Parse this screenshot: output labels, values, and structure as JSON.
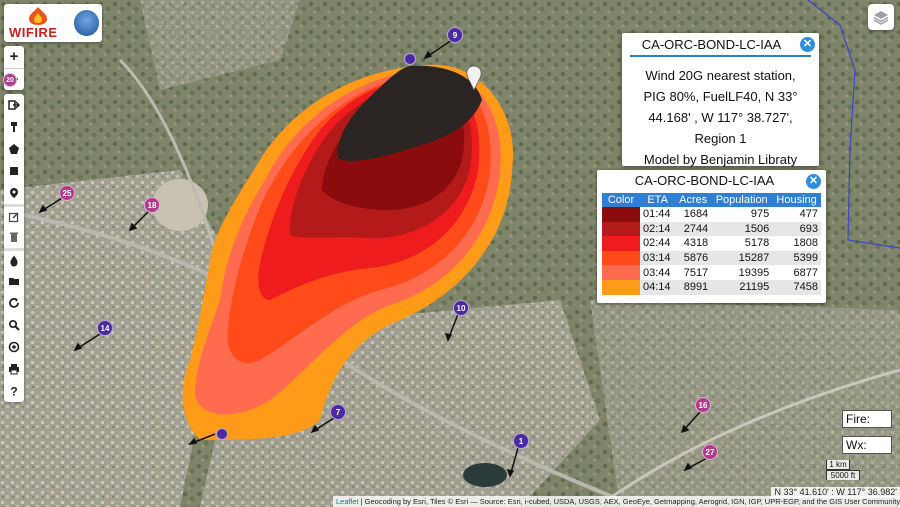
{
  "logo": {
    "wifire_text": "WIFIRE",
    "nsf_text": "NSF"
  },
  "map_controls": {
    "zoom_in": "+",
    "zoom_out": "−",
    "badge": "20",
    "tools": [
      "export-icon",
      "paint-icon",
      "polygon-icon",
      "square-icon",
      "pin-icon",
      "edit-icon",
      "trash-icon",
      "fire-icon",
      "folder-icon",
      "refresh-icon",
      "search-icon",
      "target-icon",
      "print-icon",
      "help-icon"
    ]
  },
  "fire_info_popup": {
    "title": "CA-ORC-BOND-LC-IAA",
    "lines": [
      "Wind 20G nearest station,",
      "PIG 80%, FuelLF40, N 33°",
      "44.168' , W 117° 38.727',",
      "Region 1",
      "Model by Benjamin Libraty"
    ]
  },
  "eta_popup": {
    "title": "CA-ORC-BOND-LC-IAA",
    "headers": [
      "Color",
      "ETA",
      "Acres",
      "Population",
      "Housing"
    ],
    "rows": [
      {
        "color": "#8b0c0c",
        "eta": "01:44",
        "acres": "1684",
        "population": "975",
        "housing": "477"
      },
      {
        "color": "#b51a1a",
        "eta": "02:14",
        "acres": "2744",
        "population": "1506",
        "housing": "693"
      },
      {
        "color": "#ee1c1c",
        "eta": "02:44",
        "acres": "4318",
        "population": "5178",
        "housing": "1808"
      },
      {
        "color": "#ff4a1a",
        "eta": "03:14",
        "acres": "5876",
        "population": "15287",
        "housing": "5399"
      },
      {
        "color": "#ff6b4f",
        "eta": "03:44",
        "acres": "7517",
        "population": "19395",
        "housing": "6877"
      },
      {
        "color": "#ff9b18",
        "eta": "04:14",
        "acres": "8991",
        "population": "21195",
        "housing": "7458"
      }
    ]
  },
  "markers": [
    {
      "label": "9",
      "kind": "blue"
    },
    {
      "label": "25",
      "kind": "pink"
    },
    {
      "label": "18",
      "kind": "pink"
    },
    {
      "label": "14",
      "kind": "blue"
    },
    {
      "label": "10",
      "kind": "blue"
    },
    {
      "label": "7",
      "kind": "blue"
    },
    {
      "label": "16",
      "kind": "pink"
    },
    {
      "label": "1",
      "kind": "blue"
    },
    {
      "label": "27",
      "kind": "pink"
    }
  ],
  "status": {
    "fire_label": "Fire:",
    "wx_label": "Wx:"
  },
  "scale": {
    "metric": "1 km",
    "imperial": "5000 ft"
  },
  "coords": "N 33° 41.610' : W 117° 36.982'",
  "attribution": {
    "leaflet": "Leaflet",
    "text": " | Geocoding by Esri, Tiles © Esri — Source: Esri, i-cubed, USDA, USGS, AEX, GeoEye, Getmapping, Aerogrid, IGN, IGP, UPR-EGP, and the GIS User Community"
  },
  "colors": {
    "accent": "#2f7fd4",
    "fire_dark": "#2a2522"
  }
}
